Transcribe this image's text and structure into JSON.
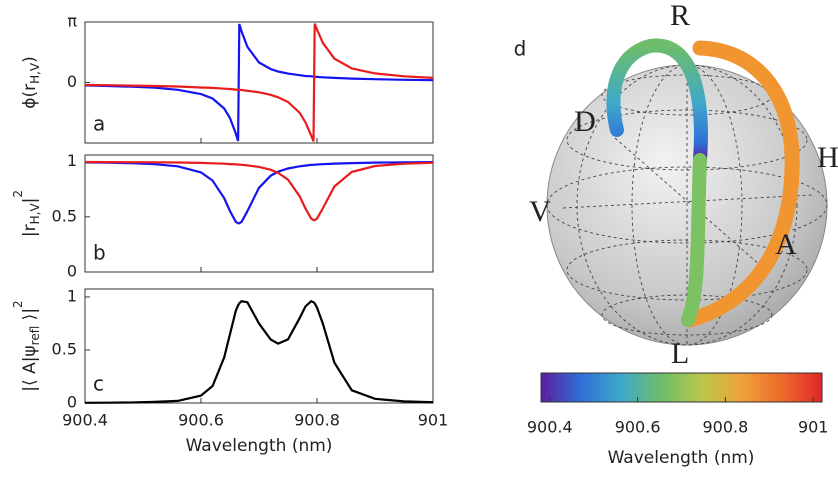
{
  "chart_data": {
    "type": "line",
    "x": [
      900.4,
      900.44,
      900.48,
      900.52,
      900.56,
      900.6,
      900.62,
      900.64,
      900.65,
      900.66,
      900.664,
      900.666,
      900.67,
      900.68,
      900.7,
      900.72,
      900.733,
      900.75,
      900.77,
      900.78,
      900.79,
      900.794,
      900.796,
      900.8,
      900.81,
      900.83,
      900.86,
      900.9,
      900.95,
      901
    ],
    "xlim": [
      900.4,
      901
    ],
    "xticks": [
      900.4,
      900.6,
      900.8,
      901
    ],
    "xlabel": "Wavelength (nm)",
    "panels": [
      {
        "label": "a",
        "ylabel": [
          {
            "text": "ϕ(r"
          },
          {
            "text": "H,V",
            "pos": "sub"
          },
          {
            "text": ")"
          }
        ],
        "ylim": [
          -3.1416,
          3.1416
        ],
        "yticks": [
          {
            "value": 3.1416,
            "label": "π"
          },
          0
        ],
        "series": [
          {
            "color": "#1414f0",
            "values": [
              -0.15,
              -0.18,
              -0.22,
              -0.27,
              -0.38,
              -0.6,
              -0.83,
              -1.35,
              -1.85,
              -2.65,
              -3.04,
              3.04,
              2.65,
              1.85,
              1.04,
              0.7,
              0.57,
              0.46,
              0.38,
              0.34,
              0.32,
              0.31,
              0.3,
              0.29,
              0.27,
              0.24,
              0.2,
              0.17,
              0.14,
              0.12
            ]
          },
          {
            "color": "#e81c1c",
            "values": [
              -0.13,
              -0.14,
              -0.16,
              -0.18,
              -0.21,
              -0.26,
              -0.28,
              -0.32,
              -0.34,
              -0.37,
              -0.38,
              -0.38,
              -0.39,
              -0.43,
              -0.51,
              -0.64,
              -0.77,
              -1.01,
              -1.57,
              -2.06,
              -2.75,
              -3.06,
              3.06,
              2.75,
              2.06,
              1.24,
              0.73,
              0.47,
              0.32,
              0.24
            ]
          }
        ]
      },
      {
        "label": "b",
        "ylabel": [
          {
            "text": "|r"
          },
          {
            "text": "H,V",
            "pos": "sub"
          },
          {
            "text": "|"
          },
          {
            "text": "2",
            "pos": "sup"
          }
        ],
        "ylim": [
          0,
          1.06
        ],
        "yticks": [
          0,
          0.5,
          1
        ],
        "series": [
          {
            "color": "#1414f0",
            "values": [
              0.993,
              0.99,
              0.986,
              0.977,
              0.958,
              0.902,
              0.828,
              0.669,
              0.552,
              0.455,
              0.441,
              0.441,
              0.455,
              0.552,
              0.763,
              0.872,
              0.909,
              0.938,
              0.958,
              0.964,
              0.97,
              0.971,
              0.972,
              0.974,
              0.977,
              0.982,
              0.987,
              0.991,
              0.994,
              0.996
            ]
          },
          {
            "color": "#e81c1c",
            "values": [
              0.997,
              0.996,
              0.995,
              0.994,
              0.992,
              0.988,
              0.985,
              0.981,
              0.978,
              0.975,
              0.974,
              0.973,
              0.971,
              0.966,
              0.952,
              0.927,
              0.899,
              0.837,
              0.687,
              0.576,
              0.484,
              0.47,
              0.47,
              0.484,
              0.576,
              0.775,
              0.907,
              0.96,
              0.981,
              0.989
            ]
          }
        ]
      },
      {
        "label": "c",
        "ylabel": [
          {
            "text": "|⟨ A|ψ"
          },
          {
            "text": "refl",
            "pos": "sub"
          },
          {
            "text": " ⟩|"
          },
          {
            "text": "2",
            "pos": "sup"
          }
        ],
        "ylim": [
          0,
          1.075
        ],
        "yticks": [
          0,
          0.5,
          1
        ],
        "series": [
          {
            "color": "#000000",
            "values": [
              0.002,
              0.003,
              0.005,
              0.01,
              0.02,
              0.07,
              0.16,
              0.43,
              0.65,
              0.87,
              0.92,
              0.94,
              0.96,
              0.95,
              0.75,
              0.6,
              0.56,
              0.6,
              0.8,
              0.91,
              0.96,
              0.95,
              0.94,
              0.9,
              0.75,
              0.38,
              0.12,
              0.04,
              0.015,
              0.008
            ]
          }
        ]
      }
    ]
  },
  "sphere": {
    "label": "d",
    "poles": {
      "R": "R",
      "L": "L",
      "H": "H",
      "V": "V",
      "D": "D",
      "A": "A"
    }
  },
  "colorbar": {
    "lim": [
      900.38,
      901.02
    ],
    "ticks": [
      900.4,
      900.6,
      900.8,
      901
    ],
    "label": "Wavelength (nm)",
    "colors": [
      "#5b1e9e",
      "#2f6fd8",
      "#3fa9c9",
      "#6dbd6a",
      "#b7c84a",
      "#f0a13a",
      "#ee6a2a",
      "#e0262a"
    ]
  }
}
